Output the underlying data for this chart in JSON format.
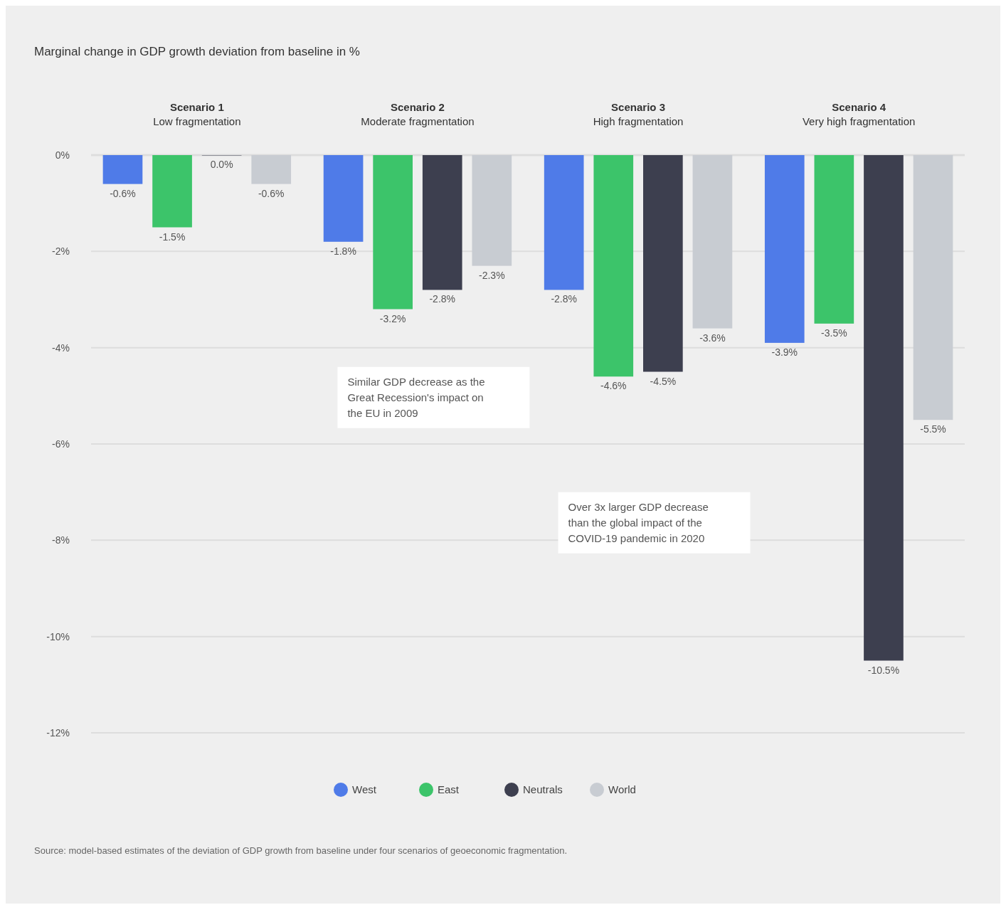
{
  "chart_data": {
    "type": "bar",
    "title": "Marginal change in GDP growth deviation from baseline in %",
    "categories": [
      "Scenario 1\nLow fragmentation",
      "Scenario 2\nModerate fragmentation",
      "Scenario 3\nHigh fragmentation",
      "Scenario 4\nVery high fragmentation"
    ],
    "series": [
      {
        "name": "West",
        "color": "#4f7be8",
        "values": [
          -0.6,
          -1.8,
          -2.8,
          -3.9
        ],
        "value_labels": [
          "-0.6%",
          "-1.8%",
          "-2.8%",
          "-3.9%"
        ]
      },
      {
        "name": "East",
        "color": "#3cc46a",
        "values": [
          -1.5,
          -3.2,
          -4.6,
          -3.5
        ],
        "value_labels": [
          "-1.5%",
          "-3.2%",
          "-4.6%",
          "-3.5%"
        ]
      },
      {
        "name": "Neutrals",
        "color": "#3d3f4f",
        "values": [
          0.0,
          -2.8,
          -4.5,
          -10.5
        ],
        "value_labels": [
          "0.0%",
          "-2.8%",
          "-4.5%",
          "-10.5%"
        ]
      },
      {
        "name": "World",
        "color": "#c8ccd2",
        "values": [
          -0.6,
          -2.3,
          -3.6,
          -5.5
        ],
        "value_labels": [
          "-0.6%",
          "-2.3%",
          "-3.6%",
          "-5.5%"
        ]
      }
    ],
    "ylim": [
      -12,
      0
    ],
    "yticks": [
      {
        "value": 0,
        "label": "0%"
      },
      {
        "value": -2,
        "label": "-2%"
      },
      {
        "value": -4,
        "label": "-4%"
      },
      {
        "value": -6,
        "label": "-6%"
      },
      {
        "value": -8,
        "label": "-8%"
      },
      {
        "value": -10,
        "label": "-10%"
      },
      {
        "value": -12,
        "label": "-12%"
      }
    ],
    "grid": "y",
    "legend": "bottom",
    "annotations": [
      "Similar GDP decrease as the Great Recession's impact on the EU in 2009",
      "Over 3x larger GDP decrease than the global impact of the COVID-19 pandemic in 2020",
      "Source: model-based estimates of the deviation of GDP growth from baseline under four scenarios of geoeconomic fragmentation."
    ]
  }
}
